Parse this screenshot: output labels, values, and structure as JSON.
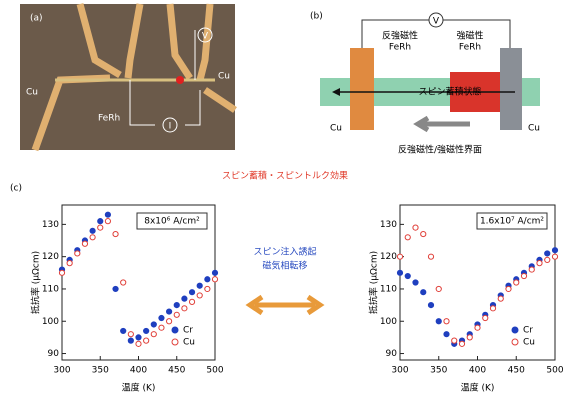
{
  "panel_a": {
    "label": "(a)",
    "cu_left": "Cu",
    "cu_right": "Cu",
    "feRh": "FeRh",
    "voltmeter": "V",
    "current": "I"
  },
  "panel_b": {
    "label": "(b)",
    "voltmeter": "V",
    "left_layer": [
      "反強磁性",
      "FeRh"
    ],
    "right_layer": [
      "強磁性",
      "FeRh"
    ],
    "channel": "スピン蓄積状態",
    "cu_left": "Cu",
    "cu_right": "Cu",
    "interface": "反強磁性/強磁性界面"
  },
  "figure_title": "スピン蓄積・スピントルク効果",
  "center_note": [
    "スピン注入誘起",
    "磁気相転移"
  ],
  "panel_c_label": "(c)",
  "chart_data": [
    {
      "type": "line",
      "annotation": "8x10⁶ A/cm²",
      "x_label": "温度 (K)",
      "y_label": "抵抗率 (μΩcm)",
      "x": [
        300,
        310,
        320,
        330,
        340,
        350,
        360,
        370,
        380,
        390,
        400,
        410,
        420,
        430,
        440,
        450,
        460,
        470,
        480,
        490,
        500
      ],
      "xlim": [
        300,
        500
      ],
      "xticks": [
        300,
        350,
        400,
        450,
        500
      ],
      "ylim": [
        88,
        136
      ],
      "yticks": [
        90,
        100,
        110,
        120,
        130
      ],
      "legend": "lower right",
      "series": [
        {
          "name": "Cr",
          "color": "#1f3fbf",
          "marker": "filled",
          "values": [
            116,
            119,
            122,
            125,
            128,
            131,
            133,
            110,
            97,
            94,
            95,
            97,
            99,
            101,
            103,
            105,
            107,
            109,
            111,
            113,
            115
          ]
        },
        {
          "name": "Cu",
          "color": "#e0403a",
          "marker": "open",
          "values": [
            115,
            118,
            121,
            124,
            126,
            129,
            131,
            127,
            112,
            96,
            93,
            94,
            96,
            98,
            100,
            102,
            104,
            106,
            108,
            110,
            113
          ]
        }
      ]
    },
    {
      "type": "line",
      "annotation": "1.6x10⁷ A/cm²",
      "x_label": "温度 (K)",
      "y_label": "抵抗率 (μΩcm)",
      "x": [
        300,
        310,
        320,
        330,
        340,
        350,
        360,
        370,
        380,
        390,
        400,
        410,
        420,
        430,
        440,
        450,
        460,
        470,
        480,
        490,
        500
      ],
      "xlim": [
        300,
        500
      ],
      "xticks": [
        300,
        350,
        400,
        450,
        500
      ],
      "ylim": [
        88,
        136
      ],
      "yticks": [
        90,
        100,
        110,
        120,
        130
      ],
      "legend": "lower right",
      "series": [
        {
          "name": "Cr",
          "color": "#1f3fbf",
          "marker": "filled",
          "values": [
            115,
            114,
            112,
            109,
            105,
            100,
            96,
            93,
            94,
            96,
            99,
            102,
            105,
            108,
            111,
            113,
            115,
            117,
            119,
            121,
            122
          ]
        },
        {
          "name": "Cu",
          "color": "#e0403a",
          "marker": "open",
          "values": [
            120,
            126,
            129,
            127,
            120,
            110,
            100,
            94,
            93,
            95,
            98,
            101,
            104,
            107,
            110,
            112,
            114,
            116,
            118,
            119,
            120
          ]
        }
      ]
    }
  ]
}
